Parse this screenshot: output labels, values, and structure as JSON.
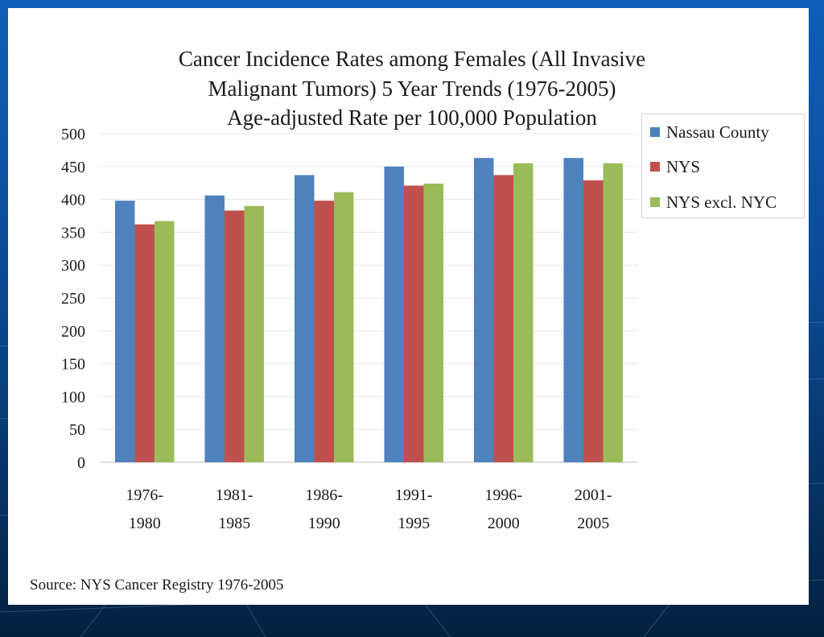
{
  "slide": {
    "source": "Source: NYS Cancer Registry 1976-2005"
  },
  "chart_data": {
    "type": "bar",
    "title_lines": [
      "Cancer Incidence Rates among Females (All Invasive",
      "Malignant Tumors) 5 Year Trends (1976-2005)",
      "Age-adjusted Rate per 100,000 Population"
    ],
    "categories": [
      [
        "1976-",
        "1980"
      ],
      [
        "1981-",
        "1985"
      ],
      [
        "1986-",
        "1990"
      ],
      [
        "1991-",
        "1995"
      ],
      [
        "1996-",
        "2000"
      ],
      [
        "2001-",
        "2005"
      ]
    ],
    "series": [
      {
        "name": "Nassau County",
        "color": "#4f81bd",
        "values": [
          398,
          406,
          437,
          450,
          463,
          463
        ]
      },
      {
        "name": "NYS",
        "color": "#c0504d",
        "values": [
          362,
          383,
          398,
          421,
          437,
          429
        ]
      },
      {
        "name": "NYS excl. NYC",
        "color": "#9bbb59",
        "values": [
          367,
          390,
          411,
          424,
          455,
          455
        ]
      }
    ],
    "ylim": [
      0,
      500
    ],
    "yticks": [
      0,
      50,
      100,
      150,
      200,
      250,
      300,
      350,
      400,
      450,
      500
    ],
    "grid": true,
    "legend_position": "top-right"
  }
}
